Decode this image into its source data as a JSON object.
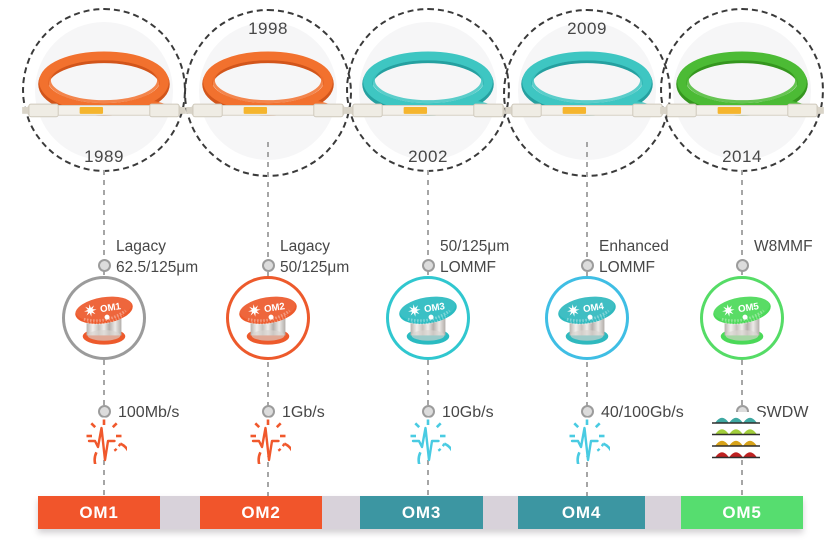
{
  "columns": [
    {
      "id": "om1",
      "year": "1989",
      "year_position": "bottom",
      "fiber_line1": "Lagacy",
      "fiber_line2": "62.5/125μm",
      "spool_label": "OM1",
      "speed_label": "100Mb/s",
      "speed_icon": "speedometer",
      "bar_label": "OM1",
      "colors": {
        "cable": "#F2712E",
        "cable_dark": "#D2551B",
        "spool": "#ED5A2C",
        "ring": "#9B9B9B",
        "icon": "#F0582C",
        "bar": "#F1552B"
      }
    },
    {
      "id": "om2",
      "year": "1998",
      "year_position": "top",
      "fiber_line1": "Lagacy",
      "fiber_line2": "50/125μm",
      "spool_label": "OM2",
      "speed_label": "1Gb/s",
      "speed_icon": "speedometer",
      "bar_label": "OM2",
      "colors": {
        "cable": "#F2712E",
        "cable_dark": "#D2551B",
        "spool": "#ED5A2C",
        "ring": "#ED5A2C",
        "icon": "#F0582C",
        "bar": "#F1552B"
      }
    },
    {
      "id": "om3",
      "year": "2002",
      "year_position": "bottom",
      "fiber_line1": "50/125μm",
      "fiber_line2": "LOMMF",
      "spool_label": "OM3",
      "speed_label": "10Gb/s",
      "speed_icon": "speedometer",
      "bar_label": "OM3",
      "colors": {
        "cable": "#3EC6C2",
        "cable_dark": "#25A0A0",
        "spool": "#2ABBC1",
        "ring": "#30C7CF",
        "icon": "#49CBE2",
        "bar": "#3C96A2"
      }
    },
    {
      "id": "om4",
      "year": "2009",
      "year_position": "top",
      "fiber_line1": "Enhanced",
      "fiber_line2": "LOMMF",
      "spool_label": "OM4",
      "speed_label": "40/100Gb/s",
      "speed_icon": "speedometer",
      "bar_label": "OM4",
      "colors": {
        "cable": "#3EC6C2",
        "cable_dark": "#25A0A0",
        "spool": "#2FB9BE",
        "ring": "#3FBEE4",
        "icon": "#49CBE2",
        "bar": "#3C96A2"
      }
    },
    {
      "id": "om5",
      "year": "2014",
      "year_position": "bottom",
      "fiber_line1": "",
      "fiber_line2": "W8MMF",
      "spool_label": "OM5",
      "speed_label": "SWDW",
      "speed_icon": "wavelengths",
      "bar_label": "OM5",
      "colors": {
        "cable": "#4CBB35",
        "cable_dark": "#35961F",
        "spool": "#4BD958",
        "ring": "#55DC66",
        "icon": "#49CBE2",
        "bar": "#56DD6F"
      }
    }
  ],
  "swdm_wave_colors": [
    "#3FA9A2",
    "#A2CE3B",
    "#D8A31A",
    "#BE2121"
  ],
  "palette": {
    "background": "#FFFFFF",
    "text": "#474747",
    "dashed_circle": "#3A3A3A",
    "dashed_line": "#A6A6A6",
    "bullet_border": "#9C9C9C",
    "bullet_fill": "#DCDCDC",
    "bar_gap": "#D8D2DA",
    "bar_text": "#FFFFFF",
    "cable_backdrop": "#F6F6F7"
  }
}
